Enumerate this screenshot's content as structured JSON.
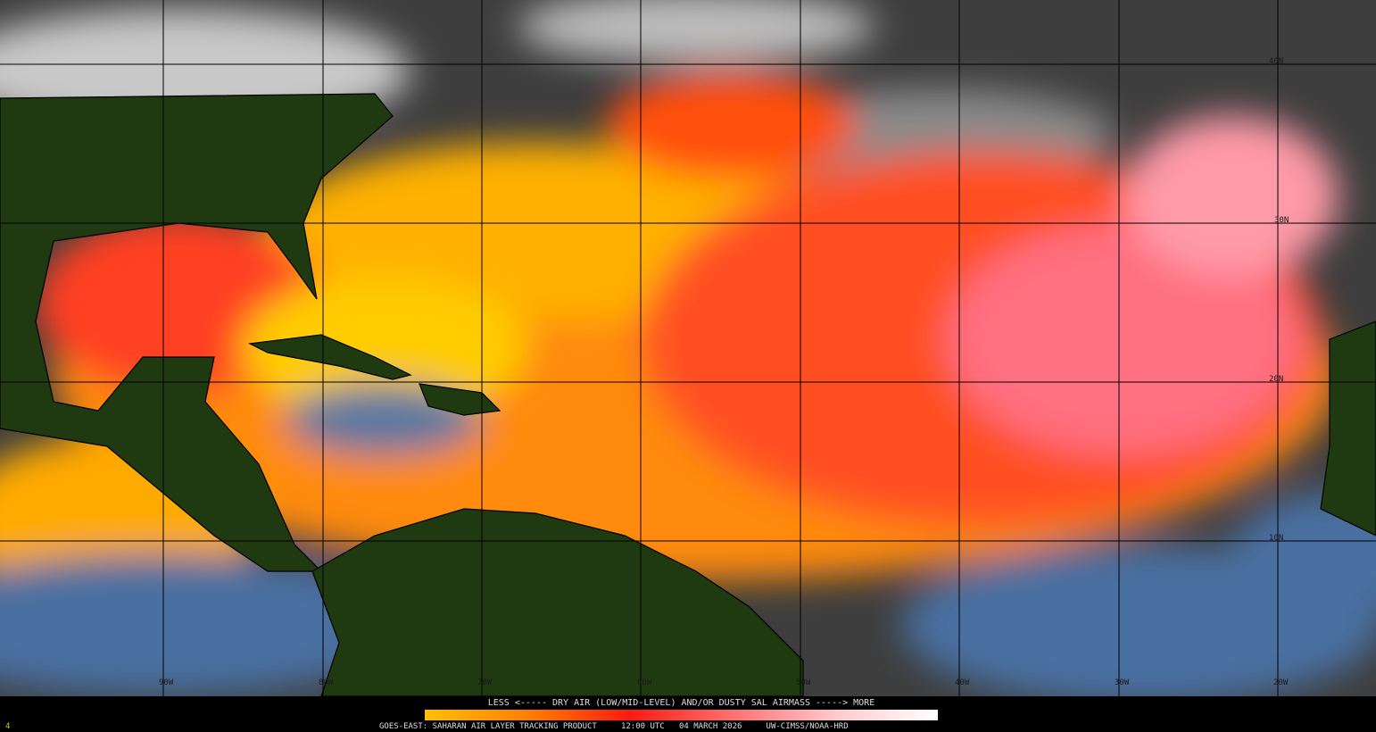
{
  "legend": {
    "title": "LESS <----- DRY AIR (LOW/MID-LEVEL) AND/OR DUSTY SAL AIRMASS -----> MORE",
    "colorbar_colors": [
      "#ffc000",
      "#ff8000",
      "#ff1a10",
      "#ff7070",
      "#ffc8cc",
      "#ffffff"
    ]
  },
  "caption": {
    "product": "GOES-EAST: SAHARAN AIR LAYER TRACKING PRODUCT",
    "time": "12:00 UTC",
    "date": "04 MARCH 2026",
    "credit": "UW-CIMSS/NOAA-HRD"
  },
  "frame_number": "4",
  "map": {
    "latitude_labels": [
      "40N",
      "30N",
      "20N",
      "10N"
    ],
    "longitude_labels": [
      "90W",
      "80W",
      "70W",
      "60W",
      "50W",
      "40W",
      "30W",
      "20W"
    ],
    "colors": {
      "land": "#1f3a10",
      "ocean_moist": "#4a6fa0",
      "cloud": "#8a8a8a",
      "dry_low": "#ffd000",
      "dry_mid": "#ff6010",
      "dry_high": "#ff9aa8"
    }
  }
}
